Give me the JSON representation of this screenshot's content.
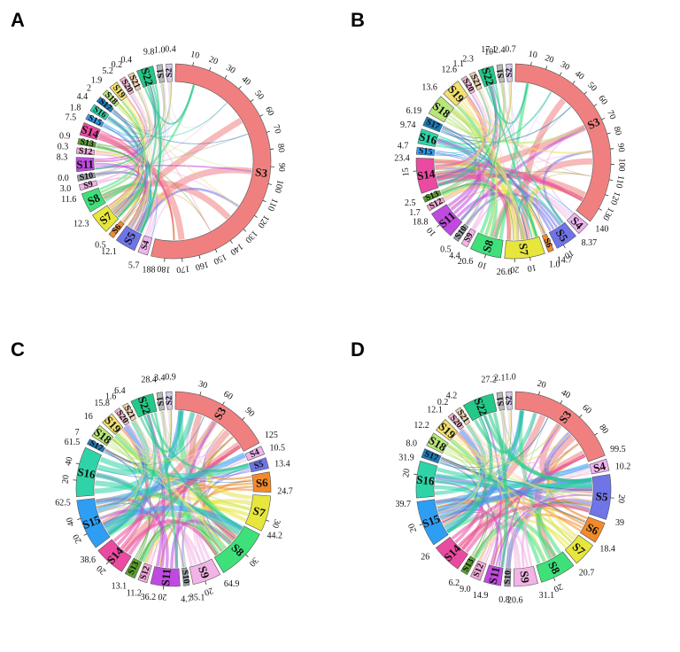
{
  "figure": {
    "colors": {
      "S1": "#b8b8b8",
      "S2": "#d8c8ee",
      "S3": "#f08080",
      "S4": "#eeb4ee",
      "S5": "#6f74e6",
      "S6": "#f28a2a",
      "S7": "#e6e63c",
      "S8": "#3ee07a",
      "S9": "#f2b4e6",
      "S10": "#9aa0a6",
      "S11": "#c04ae0",
      "S12": "#f4a8d8",
      "S13": "#5aa02c",
      "S14": "#ea4aa0",
      "S15": "#2e9ef4",
      "S16": "#2ed4a8",
      "S17": "#1a78b4",
      "S18": "#b8e67a",
      "S19": "#f2e070",
      "S20": "#f6b2d0",
      "S21": "#f0d0a8",
      "S22": "#24c888"
    }
  },
  "chart_data": [
    {
      "type": "chord",
      "panel": "A",
      "segments": [
        {
          "id": "S1",
          "label": "S1",
          "value": 1.0,
          "total_label": "1.0"
        },
        {
          "id": "S2",
          "label": "S2",
          "value": 0.4,
          "total_label": "0.4"
        },
        {
          "id": "S3",
          "label": "S3",
          "value": 188,
          "total_label": "188",
          "ticks": [
            10,
            20,
            30,
            40,
            50,
            60,
            70,
            80,
            90,
            100,
            110,
            120,
            130,
            140,
            150,
            160,
            170,
            180
          ]
        },
        {
          "id": "S4",
          "label": "S4",
          "value": 5.7,
          "total_label": "5.7"
        },
        {
          "id": "S5",
          "label": "S5",
          "value": 12.1,
          "total_label": "12.1"
        },
        {
          "id": "S6",
          "label": "S6",
          "value": 0.5,
          "total_label": "0.5"
        },
        {
          "id": "S7",
          "label": "S7",
          "value": 12.3,
          "total_label": "12.3"
        },
        {
          "id": "S8",
          "label": "S8",
          "value": 11.6,
          "total_label": "11.6"
        },
        {
          "id": "S9",
          "label": "S9",
          "value": 3.0,
          "total_label": "3.0"
        },
        {
          "id": "S10",
          "label": "S10",
          "value": 0.0,
          "total_label": "0.0"
        },
        {
          "id": "S11",
          "label": "S11",
          "value": 8.3,
          "total_label": "8.3"
        },
        {
          "id": "S12",
          "label": "S12",
          "value": 0.3,
          "total_label": "0.3"
        },
        {
          "id": "S13",
          "label": "S13",
          "value": 0.9,
          "total_label": "0.9"
        },
        {
          "id": "S14",
          "label": "S14",
          "value": 7.5,
          "total_label": "7.5"
        },
        {
          "id": "S15",
          "label": "S15",
          "value": 1.8,
          "total_label": "1.8"
        },
        {
          "id": "S16",
          "label": "S16",
          "value": 4.4,
          "total_label": "4.4"
        },
        {
          "id": "S17",
          "label": "S17",
          "value": 2.0,
          "total_label": "2"
        },
        {
          "id": "S18",
          "label": "S18",
          "value": 1.9,
          "total_label": "1.9"
        },
        {
          "id": "S19",
          "label": "S19",
          "value": 5.2,
          "total_label": "5.2"
        },
        {
          "id": "S20",
          "label": "S20",
          "value": 0.2,
          "total_label": "0.2"
        },
        {
          "id": "S21",
          "label": "S21",
          "value": 0.4,
          "total_label": "0.4"
        },
        {
          "id": "S22",
          "label": "S22",
          "value": 9.8,
          "total_label": "9.8"
        }
      ]
    },
    {
      "type": "chord",
      "panel": "B",
      "segments": [
        {
          "id": "S1",
          "label": "S1",
          "value": 2.4,
          "total_label": "2.4"
        },
        {
          "id": "S2",
          "label": "S2",
          "value": 0.7,
          "total_label": "0.7"
        },
        {
          "id": "S3",
          "label": "S3",
          "value": 140,
          "total_label": "140",
          "ticks": [
            10,
            20,
            30,
            40,
            50,
            60,
            70,
            80,
            90,
            100,
            110,
            120,
            130
          ]
        },
        {
          "id": "S4",
          "label": "S4",
          "value": 8.37,
          "total_label": "8.37"
        },
        {
          "id": "S5",
          "label": "S5",
          "value": 14.7,
          "total_label": "14.7",
          "ticks": [
            10
          ]
        },
        {
          "id": "S6",
          "label": "S6",
          "value": 1.0,
          "total_label": "1.0"
        },
        {
          "id": "S7",
          "label": "S7",
          "value": 26.6,
          "total_label": "26.6",
          "ticks": [
            10,
            20
          ]
        },
        {
          "id": "S8",
          "label": "S8",
          "value": 20.6,
          "total_label": "20.6",
          "ticks": [
            10
          ]
        },
        {
          "id": "S9",
          "label": "S9",
          "value": 4.4,
          "total_label": "4.4"
        },
        {
          "id": "S10",
          "label": "S10",
          "value": 0.5,
          "total_label": "0.5"
        },
        {
          "id": "S11",
          "label": "S11",
          "value": 18.8,
          "total_label": "18.8",
          "ticks": [
            10
          ]
        },
        {
          "id": "S12",
          "label": "S12",
          "value": 1.7,
          "total_label": "1.7"
        },
        {
          "id": "S13",
          "label": "S13",
          "value": 2.5,
          "total_label": "2.5"
        },
        {
          "id": "S14",
          "label": "S14",
          "value": 23.4,
          "total_label": "23.4",
          "ticks": [
            15
          ]
        },
        {
          "id": "S15",
          "label": "S15",
          "value": 4.7,
          "total_label": "4.7"
        },
        {
          "id": "S16",
          "label": "S16",
          "value": 9.74,
          "total_label": "9.74"
        },
        {
          "id": "S17",
          "label": "S17",
          "value": 6.19,
          "total_label": "6.19"
        },
        {
          "id": "S18",
          "label": "S18",
          "value": 13.6,
          "total_label": "13.6"
        },
        {
          "id": "S19",
          "label": "S19",
          "value": 12.6,
          "total_label": "12.6"
        },
        {
          "id": "S20",
          "label": "S20",
          "value": 1.1,
          "total_label": "1.1"
        },
        {
          "id": "S21",
          "label": "S21",
          "value": 2.3,
          "total_label": "2.3"
        },
        {
          "id": "S22",
          "label": "S22",
          "value": 10.0,
          "total_label": "10"
        },
        {
          "id": "S23",
          "label": "S1",
          "value": 17.1,
          "total_label": "17.1",
          "hidden_in_ring": true
        }
      ]
    },
    {
      "type": "chord",
      "panel": "C",
      "segments": [
        {
          "id": "S1",
          "label": "S1",
          "value": 3.4,
          "total_label": "3.4"
        },
        {
          "id": "S2",
          "label": "S2",
          "value": 0.9,
          "total_label": "0.9"
        },
        {
          "id": "S3",
          "label": "S3",
          "value": 125,
          "total_label": "125",
          "ticks": [
            30,
            60,
            90
          ]
        },
        {
          "id": "S4",
          "label": "S4",
          "value": 10.5,
          "total_label": "10.5"
        },
        {
          "id": "S5",
          "label": "S5",
          "value": 13.4,
          "total_label": "13.4"
        },
        {
          "id": "S6",
          "label": "S6",
          "value": 24.7,
          "total_label": "24.7"
        },
        {
          "id": "S7",
          "label": "S7",
          "value": 44.2,
          "total_label": "44.2",
          "ticks": [
            30
          ]
        },
        {
          "id": "S8",
          "label": "S8",
          "value": 64.9,
          "total_label": "64.9",
          "ticks": [
            30
          ]
        },
        {
          "id": "S9",
          "label": "S9",
          "value": 35.1,
          "total_label": "35.1",
          "ticks": [
            20
          ]
        },
        {
          "id": "S10",
          "label": "S10",
          "value": 4.7,
          "total_label": "4.7"
        },
        {
          "id": "S11",
          "label": "S11",
          "value": 36.2,
          "total_label": "36.2",
          "ticks": [
            20
          ]
        },
        {
          "id": "S12",
          "label": "S12",
          "value": 11.2,
          "total_label": "11.2"
        },
        {
          "id": "S13",
          "label": "S13",
          "value": 13.1,
          "total_label": "13.1"
        },
        {
          "id": "S14",
          "label": "S14",
          "value": 38.6,
          "total_label": "38.6",
          "ticks": [
            20
          ]
        },
        {
          "id": "S15",
          "label": "S15",
          "value": 62.5,
          "total_label": "62.5",
          "ticks": [
            20,
            40
          ]
        },
        {
          "id": "S16",
          "label": "S16",
          "value": 61.5,
          "total_label": "61.5",
          "ticks": [
            20,
            40
          ]
        },
        {
          "id": "S17",
          "label": "S17",
          "value": 7.0,
          "total_label": "7"
        },
        {
          "id": "S18",
          "label": "S18",
          "value": 16.0,
          "total_label": "16"
        },
        {
          "id": "S19",
          "label": "S19",
          "value": 15.8,
          "total_label": "15.8"
        },
        {
          "id": "S20",
          "label": "S20",
          "value": 1.6,
          "total_label": "1.6"
        },
        {
          "id": "S21",
          "label": "S21",
          "value": 6.4,
          "total_label": "6.4"
        },
        {
          "id": "S22",
          "label": "S22",
          "value": 28.4,
          "total_label": "28.4"
        }
      ]
    },
    {
      "type": "chord",
      "panel": "D",
      "segments": [
        {
          "id": "S1",
          "label": "S1",
          "value": 2.1,
          "total_label": "2.1"
        },
        {
          "id": "S2",
          "label": "S2",
          "value": 1.0,
          "total_label": "1.0"
        },
        {
          "id": "S3",
          "label": "S3",
          "value": 99.5,
          "total_label": "99.5",
          "ticks": [
            20,
            40,
            60,
            80
          ]
        },
        {
          "id": "S4",
          "label": "S4",
          "value": 10.2,
          "total_label": "10.2"
        },
        {
          "id": "S5",
          "label": "S5",
          "value": 39.0,
          "total_label": "39",
          "ticks": [
            20
          ]
        },
        {
          "id": "S6",
          "label": "S6",
          "value": 18.4,
          "total_label": "18.4"
        },
        {
          "id": "S7",
          "label": "S7",
          "value": 20.7,
          "total_label": "20.7"
        },
        {
          "id": "S8",
          "label": "S8",
          "value": 31.1,
          "total_label": "31.1",
          "ticks": [
            20
          ]
        },
        {
          "id": "S9",
          "label": "S9",
          "value": 20.6,
          "total_label": "20.6"
        },
        {
          "id": "S10",
          "label": "S10",
          "value": 0.8,
          "total_label": "0.8"
        },
        {
          "id": "S11",
          "label": "S11",
          "value": 14.9,
          "total_label": "14.9"
        },
        {
          "id": "S12",
          "label": "S12",
          "value": 9.0,
          "total_label": "9.0"
        },
        {
          "id": "S13",
          "label": "S13",
          "value": 6.2,
          "total_label": "6.2"
        },
        {
          "id": "S14",
          "label": "S14",
          "value": 26.0,
          "total_label": "26"
        },
        {
          "id": "S15",
          "label": "S15",
          "value": 39.7,
          "total_label": "39.7",
          "ticks": [
            20
          ]
        },
        {
          "id": "S16",
          "label": "S16",
          "value": 31.9,
          "total_label": "31.9",
          "ticks": [
            20
          ]
        },
        {
          "id": "S17",
          "label": "S17",
          "value": 8.0,
          "total_label": "8.0"
        },
        {
          "id": "S18",
          "label": "S18",
          "value": 12.2,
          "total_label": "12.2"
        },
        {
          "id": "S19",
          "label": "S19",
          "value": 12.1,
          "total_label": "12.1"
        },
        {
          "id": "S20",
          "label": "S20",
          "value": 0.2,
          "total_label": "0.2"
        },
        {
          "id": "S21",
          "label": "S21",
          "value": 4.2,
          "total_label": "4.2"
        },
        {
          "id": "S22",
          "label": "S22",
          "value": 27.2,
          "total_label": "27.2"
        }
      ]
    }
  ]
}
